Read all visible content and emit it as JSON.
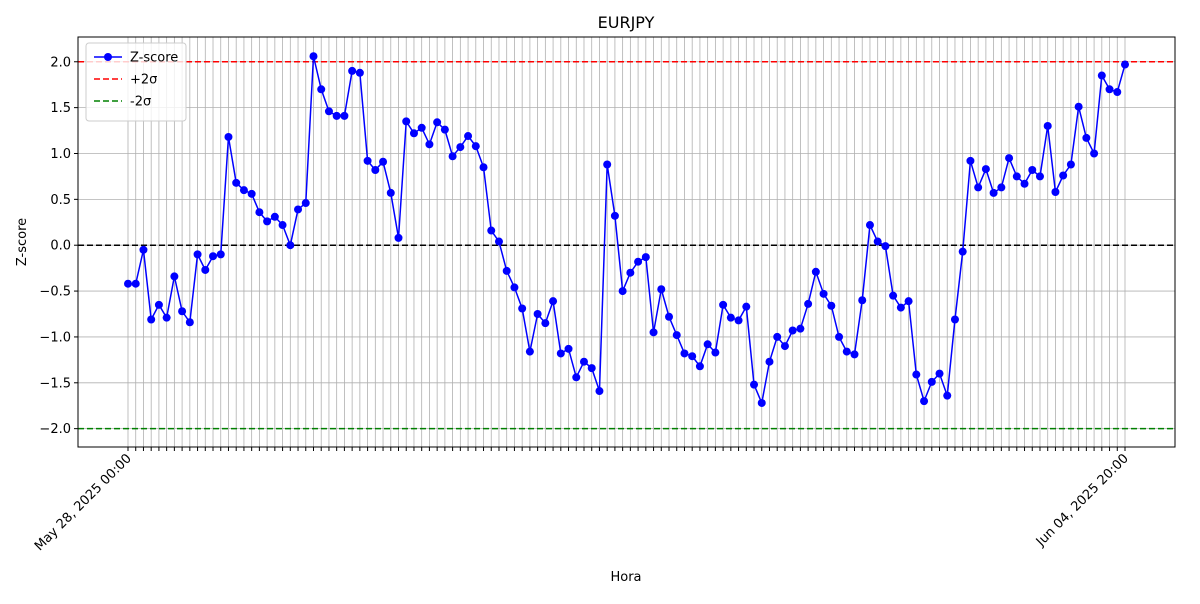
{
  "chart_data": {
    "type": "line",
    "title": "EURJPY",
    "x_label": "Hora",
    "y_label": "Z-score",
    "categories": [
      "May 28, 2025 00:00",
      null,
      null,
      null,
      null,
      null,
      null,
      null,
      null,
      null,
      null,
      null,
      null,
      null,
      null,
      null,
      null,
      null,
      null,
      null,
      null,
      null,
      null,
      null,
      null,
      null,
      null,
      null,
      null,
      null,
      null,
      null,
      null,
      null,
      null,
      null,
      null,
      null,
      null,
      null,
      null,
      null,
      null,
      null,
      null,
      null,
      null,
      null,
      null,
      null,
      null,
      null,
      null,
      null,
      null,
      null,
      null,
      null,
      null,
      null,
      null,
      null,
      null,
      null,
      null,
      null,
      null,
      null,
      null,
      null,
      null,
      null,
      null,
      null,
      null,
      null,
      null,
      null,
      null,
      null,
      null,
      null,
      null,
      null,
      null,
      null,
      null,
      null,
      null,
      null,
      null,
      null,
      null,
      null,
      null,
      null,
      null,
      null,
      null,
      null,
      null,
      null,
      null,
      null,
      null,
      null,
      null,
      null,
      null,
      null,
      null,
      null,
      null,
      null,
      null,
      null,
      null,
      null,
      null,
      null,
      null,
      null,
      null,
      null,
      null,
      null,
      null,
      null,
      null,
      "Jun 04, 2025 20:00"
    ],
    "series": [
      {
        "name": "Z-score",
        "color": "#0000ff",
        "values": [
          -0.42,
          -0.42,
          -0.05,
          -0.81,
          -0.65,
          -0.79,
          -0.34,
          -0.72,
          -0.84,
          -0.1,
          -0.27,
          -0.12,
          -0.1,
          1.18,
          0.68,
          0.6,
          0.56,
          0.36,
          0.26,
          0.31,
          0.22,
          0.0,
          0.39,
          0.46,
          2.06,
          1.7,
          1.46,
          1.41,
          1.41,
          1.9,
          1.88,
          0.92,
          0.82,
          0.91,
          0.57,
          0.08,
          1.35,
          1.22,
          1.28,
          1.1,
          1.34,
          1.26,
          0.97,
          1.07,
          1.19,
          1.08,
          0.85,
          0.16,
          0.04,
          -0.28,
          -0.46,
          -0.69,
          -1.16,
          -0.75,
          -0.85,
          -0.61,
          -1.18,
          -1.13,
          -1.44,
          -1.27,
          -1.34,
          -1.59,
          0.88,
          0.32,
          -0.5,
          -0.3,
          -0.18,
          -0.13,
          -0.95,
          -0.48,
          -0.78,
          -0.98,
          -1.18,
          -1.21,
          -1.32,
          -1.08,
          -1.17,
          -0.65,
          -0.79,
          -0.82,
          -0.67,
          -1.52,
          -1.72,
          -1.27,
          -1.0,
          -1.1,
          -0.93,
          -0.91,
          -0.64,
          -0.29,
          -0.53,
          -0.66,
          -1.0,
          -1.16,
          -1.19,
          -0.6,
          0.22,
          0.04,
          -0.01,
          -0.55,
          -0.68,
          -0.61,
          -1.41,
          -1.7,
          -1.49,
          -1.4,
          -1.64,
          -0.81,
          -0.07,
          0.92,
          0.63,
          0.83,
          0.57,
          0.63,
          0.95,
          0.75,
          0.67,
          0.82,
          0.75,
          1.3,
          0.58,
          0.76,
          0.88,
          1.51,
          1.17,
          1.0,
          1.85,
          1.7,
          1.67,
          1.97
        ]
      }
    ],
    "hlines": [
      {
        "name": "+2σ",
        "value": 2,
        "color": "#ff0000"
      },
      {
        "name": "-2σ",
        "value": -2,
        "color": "#008000"
      },
      {
        "value": 0,
        "color": "#000000"
      }
    ],
    "ylim": [
      -2.2,
      2.27
    ],
    "yticks": [
      {
        "value": -2,
        "label": "−2.0"
      },
      {
        "value": -1.5,
        "label": "−1.5"
      },
      {
        "value": -1,
        "label": "−1.0"
      },
      {
        "value": -0.5,
        "label": "−0.5"
      },
      {
        "value": 0,
        "label": "0.0"
      },
      {
        "value": 0.5,
        "label": "0.5"
      },
      {
        "value": 1,
        "label": "1.0"
      },
      {
        "value": 1.5,
        "label": "1.5"
      },
      {
        "value": 2,
        "label": "2.0"
      }
    ],
    "grid": true,
    "legend": "upper left"
  }
}
